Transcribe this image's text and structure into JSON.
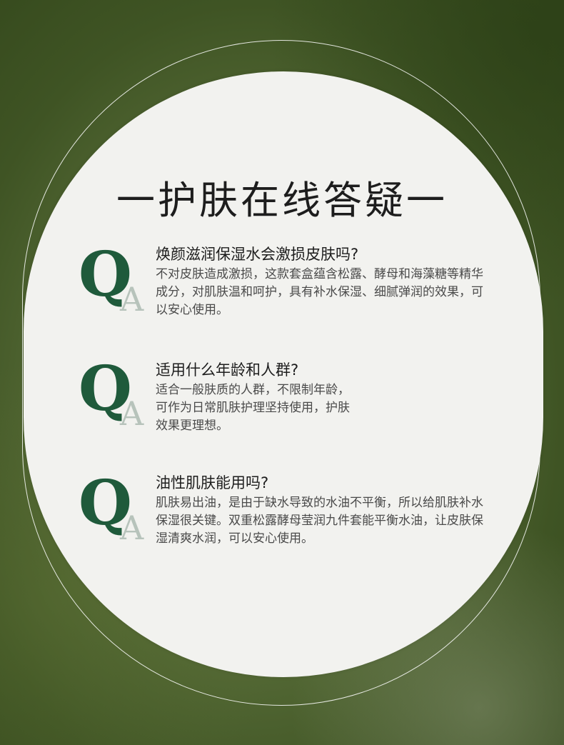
{
  "title": "一护肤在线答疑一",
  "qa_marks": {
    "q": "Q",
    "a": "A"
  },
  "faqs": [
    {
      "question": "焕颜滋润保湿水会激损皮肤吗?",
      "answer": "不对皮肤造成激损，这款套盒蕴含松露、酵母和海藻糖等精华成分，对肌肤温和呵护，具有补水保湿、细腻弹润的效果，可以安心使用。"
    },
    {
      "question": "适用什么年龄和人群?",
      "answer": "适合一般肤质的人群，不限制年龄，可作为日常肌肤护理坚持使用，护肤效果更理想。"
    },
    {
      "question": "油性肌肤能用吗?",
      "answer": "肌肤易出油，是由于缺水导致的水油不平衡，所以给肌肤补水保湿很关键。双重松露酵母莹润九件套能平衡水油，让皮肤保湿清爽水润，可以安心使用。"
    }
  ],
  "colors": {
    "q_mark": "#1f5a3b",
    "a_mark": "#b7c3bb",
    "background": "#4a5f2e",
    "card": "#f2f2ef"
  }
}
